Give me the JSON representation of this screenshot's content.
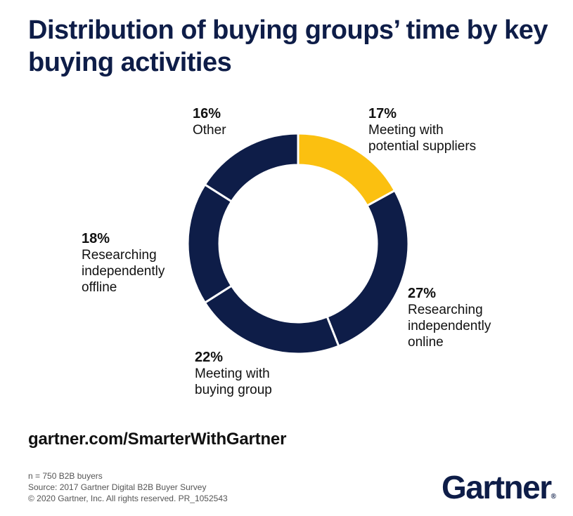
{
  "title": "Distribution of buying groups’ time by key buying activities",
  "chart_data": {
    "type": "pie",
    "donut": true,
    "categories": [
      "Meeting with potential suppliers",
      "Researching independently online",
      "Meeting with buying group",
      "Researching independently offline",
      "Other"
    ],
    "values": [
      17,
      27,
      22,
      18,
      16
    ],
    "value_labels": [
      "17%",
      "27%",
      "22%",
      "18%",
      "16%"
    ],
    "label_text": [
      "Meeting with\npotential suppliers",
      "Researching\nindependently\nonline",
      "Meeting with\nbuying group",
      "Researching\nindependently\noffline",
      "Other"
    ],
    "colors": [
      "#fbc010",
      "#0e1d48",
      "#0e1d48",
      "#0e1d48",
      "#0e1d48"
    ],
    "start": "top",
    "direction": "clockwise"
  },
  "footer": {
    "url": "gartner.com/SmarterWithGartner",
    "notes": [
      "n = 750 B2B buyers",
      "Source: 2017 Gartner Digital B2B Buyer Survey",
      "© 2020 Gartner, Inc. All rights reserved. PR_1052543"
    ],
    "logo": "Gartner"
  }
}
